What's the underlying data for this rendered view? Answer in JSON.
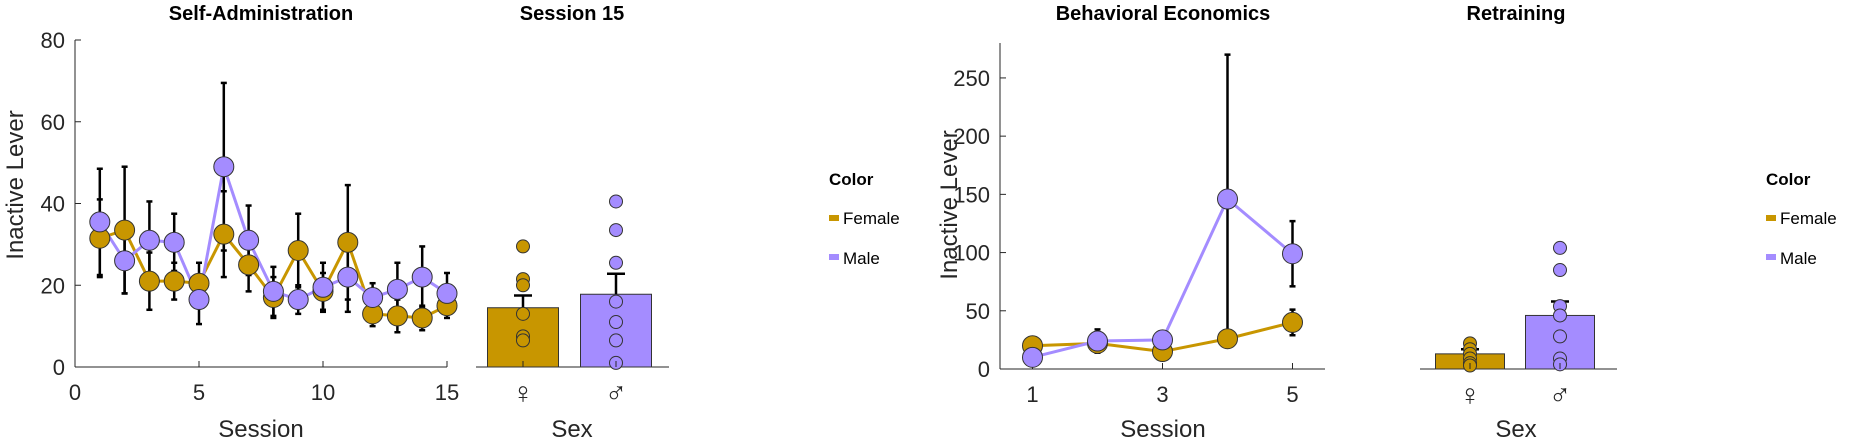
{
  "colors": {
    "female": "#c89600",
    "male": "#a48cff",
    "axis": "#262626",
    "errorbar": "#000000"
  },
  "chart_data": [
    {
      "type": "line",
      "title": "Self-Administration",
      "xlabel": "Session",
      "ylabel": "Inactive Lever",
      "xlim": [
        0,
        15
      ],
      "ylim": [
        0,
        80
      ],
      "xticks": [
        "0",
        "5",
        "10",
        "15"
      ],
      "yticks": [
        "0",
        "20",
        "40",
        "60",
        "80"
      ],
      "x": [
        1,
        2,
        3,
        4,
        5,
        6,
        7,
        8,
        9,
        10,
        11,
        12,
        13,
        14,
        15
      ],
      "series": [
        {
          "name": "Female",
          "color": "#c89600",
          "values": [
            31.5,
            33.5,
            21,
            21,
            20.5,
            32.5,
            25,
            17,
            28.5,
            18.5,
            30.5,
            13,
            12.5,
            12,
            15
          ],
          "err": [
            9.5,
            15.5,
            7,
            4.5,
            5,
            10.5,
            6.5,
            5,
            9,
            4.5,
            14,
            3,
            4,
            3,
            3
          ]
        },
        {
          "name": "Male",
          "color": "#a48cff",
          "values": [
            35.5,
            26,
            31,
            30.5,
            16.5,
            49,
            31,
            18.5,
            16.5,
            19.5,
            22,
            17,
            19,
            22,
            18
          ],
          "err": [
            13,
            8,
            9.5,
            7,
            6,
            20.5,
            8.5,
            6,
            3.5,
            6,
            8.5,
            3.5,
            6.5,
            7.5,
            5
          ]
        }
      ]
    },
    {
      "type": "bar",
      "title": "Session 15",
      "xlabel": "Sex",
      "categories": [
        "♀",
        "♂"
      ],
      "ylim": [
        0,
        80
      ],
      "values": [
        14.5,
        17.8
      ],
      "err": [
        3,
        5
      ],
      "points": [
        [
          29.5,
          21.5,
          20,
          13,
          7.5,
          6.5
        ],
        [
          40.5,
          33.5,
          25.5,
          16,
          11,
          6.5,
          1
        ]
      ]
    },
    {
      "type": "legend",
      "title": "Color",
      "entries": [
        "Female",
        "Male"
      ]
    },
    {
      "type": "line",
      "title": "Behavioral Economics",
      "xlabel": "Session",
      "ylabel": "Inactive Lever",
      "xlim": [
        0.5,
        5.5
      ],
      "ylim": [
        0,
        280
      ],
      "xticks": [
        "1",
        "3",
        "5"
      ],
      "yticks": [
        "0",
        "50",
        "100",
        "150",
        "200",
        "250"
      ],
      "x": [
        1,
        2,
        3,
        4,
        5
      ],
      "series": [
        {
          "name": "Female",
          "color": "#c89600",
          "values": [
            20,
            22,
            15,
            26,
            40
          ],
          "err": [
            4,
            8,
            3,
            5,
            11
          ]
        },
        {
          "name": "Male",
          "color": "#a48cff",
          "values": [
            10,
            24,
            25,
            146,
            99
          ],
          "err": [
            3,
            10,
            4,
            124,
            28
          ]
        }
      ]
    },
    {
      "type": "bar",
      "title": "Retraining",
      "xlabel": "Sex",
      "categories": [
        "♀",
        "♂"
      ],
      "ylim": [
        0,
        280
      ],
      "values": [
        13,
        46
      ],
      "err": [
        4,
        12
      ],
      "points": [
        [
          22,
          17,
          13,
          9,
          5,
          3
        ],
        [
          104,
          85,
          54,
          46,
          28,
          9,
          4
        ]
      ]
    },
    {
      "type": "legend",
      "title": "Color",
      "entries": [
        "Female",
        "Male"
      ]
    }
  ]
}
